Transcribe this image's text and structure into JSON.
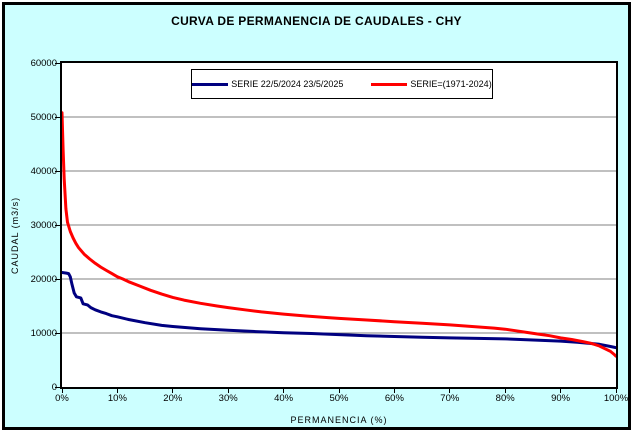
{
  "colors": {
    "background": "#CCFFFF",
    "plot_background": "#FFFFFF",
    "grid": "#808080",
    "axis": "#000000"
  },
  "chart_data": {
    "type": "line",
    "title": "CURVA DE PERMANENCIA DE CAUDALES - CHY",
    "xlabel": "PERMANENCIA (%)",
    "ylabel": "CAUDAL (m3/s)",
    "xlim": [
      0,
      100
    ],
    "ylim": [
      0,
      60000
    ],
    "grid": "horizontal-gray-lines",
    "legend_position": "top-center-inside",
    "x_ticks": [
      0,
      10,
      20,
      30,
      40,
      50,
      60,
      70,
      80,
      90,
      100
    ],
    "x_tick_labels": [
      "0%",
      "10%",
      "20%",
      "30%",
      "40%",
      "50%",
      "60%",
      "70%",
      "80%",
      "90%",
      "100%"
    ],
    "y_ticks": [
      0,
      10000,
      20000,
      30000,
      40000,
      50000,
      60000
    ],
    "y_tick_labels": [
      "0",
      "10000",
      "20000",
      "30000",
      "40000",
      "50000",
      "60000"
    ],
    "series": [
      {
        "name": "SERIE 22/5/2024 23/5/2025",
        "color": "#000080",
        "stroke_width": 3,
        "x": [
          0,
          0.8,
          1.2,
          1.5,
          1.8,
          2.2,
          2.6,
          3.4,
          3.8,
          4.6,
          5.2,
          6,
          7,
          8,
          9,
          10,
          12,
          15,
          18,
          20,
          25,
          30,
          35,
          40,
          45,
          50,
          55,
          60,
          65,
          70,
          75,
          80,
          85,
          90,
          93,
          95,
          97,
          99,
          100
        ],
        "y": [
          21200,
          21100,
          21000,
          20400,
          19000,
          17400,
          16700,
          16500,
          15400,
          15200,
          14700,
          14300,
          13900,
          13600,
          13200,
          13000,
          12500,
          11900,
          11400,
          11200,
          10800,
          10500,
          10250,
          10050,
          9900,
          9700,
          9500,
          9350,
          9200,
          9100,
          9000,
          8900,
          8700,
          8500,
          8300,
          8100,
          7900,
          7500,
          7300
        ]
      },
      {
        "name": "SERIE=(1971-2024)",
        "color": "#FF0000",
        "stroke_width": 3,
        "x": [
          0,
          0.2,
          0.4,
          0.7,
          1,
          1.5,
          2,
          2.5,
          3,
          4,
          5,
          6,
          7,
          8,
          9,
          10,
          11,
          12,
          14,
          16,
          18,
          20,
          22,
          25,
          28,
          30,
          33,
          36,
          40,
          44,
          48,
          50,
          55,
          60,
          65,
          70,
          74,
          78,
          80,
          82,
          84,
          86,
          88,
          90,
          92,
          94,
          95.5,
          97,
          98,
          99,
          99.6,
          100
        ],
        "y": [
          50800,
          44000,
          38500,
          33000,
          30500,
          28800,
          27600,
          26600,
          25800,
          24600,
          23700,
          22900,
          22200,
          21600,
          21000,
          20400,
          20000,
          19500,
          18700,
          17900,
          17200,
          16600,
          16100,
          15500,
          15000,
          14700,
          14300,
          13900,
          13500,
          13150,
          12850,
          12700,
          12400,
          12100,
          11800,
          11500,
          11200,
          10900,
          10700,
          10400,
          10100,
          9800,
          9500,
          9100,
          8800,
          8400,
          8100,
          7600,
          7100,
          6600,
          6100,
          5700
        ]
      }
    ]
  }
}
